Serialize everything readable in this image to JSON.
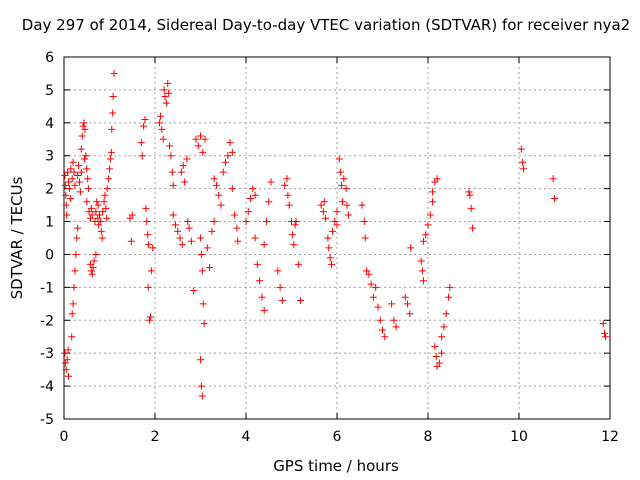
{
  "chart_data": {
    "type": "scatter",
    "title": "Day 297 of 2014, Sidereal Day-to-day VTEC variation (SDTVAR) for receiver nya2",
    "xlabel": "GPS time / hours",
    "ylabel": "SDTVAR / TECUs",
    "xlim": [
      0,
      12
    ],
    "ylim": [
      -5,
      6
    ],
    "xticks": [
      "0",
      "2",
      "4",
      "6",
      "8",
      "10",
      "12"
    ],
    "yticks": [
      "-5",
      "-4",
      "-3",
      "-2",
      "-1",
      "0",
      "1",
      "2",
      "3",
      "4",
      "5",
      "6"
    ],
    "grid": true,
    "marker": "+",
    "color": "#ff0000",
    "series": [
      {
        "name": "SDTVAR",
        "points": [
          [
            0.02,
            2.4
          ],
          [
            0.03,
            2.1
          ],
          [
            0.04,
            1.8
          ],
          [
            0.05,
            1.5
          ],
          [
            0.06,
            1.2
          ],
          [
            0.02,
            -3.0
          ],
          [
            0.03,
            -3.3
          ],
          [
            0.05,
            -3.5
          ],
          [
            0.07,
            -3.2
          ],
          [
            0.09,
            -2.9
          ],
          [
            0.1,
            -3.7
          ],
          [
            0.08,
            2.5
          ],
          [
            0.1,
            2.2
          ],
          [
            0.12,
            2.0
          ],
          [
            0.14,
            1.7
          ],
          [
            0.15,
            2.6
          ],
          [
            0.18,
            2.3
          ],
          [
            0.2,
            2.8
          ],
          [
            0.22,
            2.5
          ],
          [
            0.24,
            2.1
          ],
          [
            0.17,
            -2.5
          ],
          [
            0.18,
            -1.8
          ],
          [
            0.2,
            -1.5
          ],
          [
            0.22,
            -1.0
          ],
          [
            0.24,
            -0.5
          ],
          [
            0.26,
            0.0
          ],
          [
            0.28,
            0.5
          ],
          [
            0.3,
            0.8
          ],
          [
            0.3,
            2.4
          ],
          [
            0.32,
            2.7
          ],
          [
            0.34,
            2.2
          ],
          [
            0.36,
            1.9
          ],
          [
            0.38,
            2.5
          ],
          [
            0.38,
            3.2
          ],
          [
            0.4,
            3.6
          ],
          [
            0.42,
            3.9
          ],
          [
            0.44,
            4.0
          ],
          [
            0.46,
            3.8
          ],
          [
            0.45,
            2.9
          ],
          [
            0.48,
            3.0
          ],
          [
            0.5,
            2.6
          ],
          [
            0.52,
            2.3
          ],
          [
            0.54,
            2.0
          ],
          [
            0.5,
            1.6
          ],
          [
            0.55,
            1.3
          ],
          [
            0.58,
            1.1
          ],
          [
            0.6,
            1.4
          ],
          [
            0.62,
            1.2
          ],
          [
            0.58,
            -0.3
          ],
          [
            0.6,
            -0.5
          ],
          [
            0.62,
            -0.6
          ],
          [
            0.64,
            -0.4
          ],
          [
            0.66,
            -0.2
          ],
          [
            0.7,
            0.0
          ],
          [
            0.68,
            1.0
          ],
          [
            0.7,
            1.3
          ],
          [
            0.72,
            1.6
          ],
          [
            0.74,
            1.1
          ],
          [
            0.76,
            0.9
          ],
          [
            0.75,
            1.5
          ],
          [
            0.78,
            1.2
          ],
          [
            0.8,
            1.0
          ],
          [
            0.82,
            0.7
          ],
          [
            0.84,
            0.5
          ],
          [
            0.85,
            1.3
          ],
          [
            0.88,
            1.6
          ],
          [
            0.9,
            1.8
          ],
          [
            0.92,
            1.4
          ],
          [
            0.94,
            1.1
          ],
          [
            0.95,
            2.0
          ],
          [
            0.98,
            2.3
          ],
          [
            1.0,
            2.6
          ],
          [
            1.02,
            2.9
          ],
          [
            1.04,
            3.1
          ],
          [
            1.05,
            3.8
          ],
          [
            1.07,
            4.3
          ],
          [
            1.08,
            4.8
          ],
          [
            1.1,
            5.5
          ],
          [
            1.45,
            1.1
          ],
          [
            1.5,
            1.2
          ],
          [
            1.48,
            0.4
          ],
          [
            1.7,
            3.4
          ],
          [
            1.72,
            3.0
          ],
          [
            1.75,
            3.9
          ],
          [
            1.78,
            4.1
          ],
          [
            1.8,
            1.4
          ],
          [
            1.82,
            1.0
          ],
          [
            1.84,
            0.6
          ],
          [
            1.86,
            0.3
          ],
          [
            1.85,
            -1.0
          ],
          [
            1.88,
            -2.0
          ],
          [
            1.9,
            -1.9
          ],
          [
            1.92,
            -0.5
          ],
          [
            1.95,
            0.2
          ],
          [
            2.1,
            4.0
          ],
          [
            2.12,
            4.2
          ],
          [
            2.15,
            3.8
          ],
          [
            2.18,
            3.5
          ],
          [
            2.2,
            5.0
          ],
          [
            2.22,
            4.8
          ],
          [
            2.25,
            4.6
          ],
          [
            2.28,
            5.2
          ],
          [
            2.3,
            4.9
          ],
          [
            2.32,
            3.3
          ],
          [
            2.35,
            3.0
          ],
          [
            2.38,
            2.5
          ],
          [
            2.4,
            2.1
          ],
          [
            2.4,
            1.2
          ],
          [
            2.45,
            0.9
          ],
          [
            2.5,
            0.7
          ],
          [
            2.55,
            0.5
          ],
          [
            2.6,
            0.3
          ],
          [
            2.58,
            2.5
          ],
          [
            2.62,
            2.7
          ],
          [
            2.65,
            2.2
          ],
          [
            2.7,
            2.9
          ],
          [
            2.72,
            1.0
          ],
          [
            2.75,
            0.8
          ],
          [
            2.8,
            0.4
          ],
          [
            2.85,
            -1.1
          ],
          [
            2.9,
            3.5
          ],
          [
            2.95,
            3.3
          ],
          [
            3.0,
            3.6
          ],
          [
            3.05,
            3.1
          ],
          [
            3.1,
            3.5
          ],
          [
            3.0,
            0.5
          ],
          [
            3.02,
            0.0
          ],
          [
            3.04,
            -0.5
          ],
          [
            3.06,
            -1.5
          ],
          [
            3.08,
            -2.1
          ],
          [
            3.0,
            -3.2
          ],
          [
            3.02,
            -4.0
          ],
          [
            3.04,
            -4.3
          ],
          [
            3.15,
            0.2
          ],
          [
            3.2,
            -0.4
          ],
          [
            3.25,
            0.7
          ],
          [
            3.3,
            1.0
          ],
          [
            3.3,
            2.3
          ],
          [
            3.35,
            2.1
          ],
          [
            3.4,
            1.8
          ],
          [
            3.45,
            1.5
          ],
          [
            3.5,
            2.5
          ],
          [
            3.55,
            2.8
          ],
          [
            3.6,
            3.0
          ],
          [
            3.65,
            3.4
          ],
          [
            3.7,
            3.1
          ],
          [
            3.7,
            2.0
          ],
          [
            3.75,
            1.2
          ],
          [
            3.8,
            0.8
          ],
          [
            3.82,
            0.4
          ],
          [
            4.0,
            1.0
          ],
          [
            4.05,
            1.3
          ],
          [
            4.1,
            1.7
          ],
          [
            4.15,
            2.0
          ],
          [
            4.2,
            1.8
          ],
          [
            4.2,
            0.5
          ],
          [
            4.25,
            -0.3
          ],
          [
            4.3,
            -0.8
          ],
          [
            4.35,
            -1.3
          ],
          [
            4.4,
            -1.7
          ],
          [
            4.4,
            0.3
          ],
          [
            4.45,
            1.0
          ],
          [
            4.5,
            1.6
          ],
          [
            4.55,
            2.2
          ],
          [
            4.7,
            -0.5
          ],
          [
            4.75,
            -1.0
          ],
          [
            4.8,
            -1.4
          ],
          [
            4.85,
            2.1
          ],
          [
            4.9,
            2.3
          ],
          [
            4.92,
            1.8
          ],
          [
            4.95,
            1.5
          ],
          [
            5.0,
            1.0
          ],
          [
            5.02,
            0.6
          ],
          [
            5.05,
            0.3
          ],
          [
            5.08,
            0.9
          ],
          [
            5.1,
            1.0
          ],
          [
            5.15,
            -0.3
          ],
          [
            5.2,
            -1.4
          ],
          [
            5.65,
            1.5
          ],
          [
            5.7,
            1.3
          ],
          [
            5.72,
            1.6
          ],
          [
            5.75,
            1.1
          ],
          [
            5.8,
            0.5
          ],
          [
            5.82,
            0.2
          ],
          [
            5.85,
            -0.1
          ],
          [
            5.88,
            -0.3
          ],
          [
            5.9,
            0.7
          ],
          [
            5.95,
            1.0
          ],
          [
            6.0,
            1.3
          ],
          [
            6.0,
            0.9
          ],
          [
            6.05,
            2.9
          ],
          [
            6.08,
            2.5
          ],
          [
            6.1,
            2.1
          ],
          [
            6.12,
            1.6
          ],
          [
            6.15,
            2.3
          ],
          [
            6.2,
            2.0
          ],
          [
            6.22,
            1.5
          ],
          [
            6.25,
            1.2
          ],
          [
            6.55,
            1.5
          ],
          [
            6.6,
            1.0
          ],
          [
            6.62,
            0.5
          ],
          [
            6.65,
            -0.5
          ],
          [
            6.7,
            -0.6
          ],
          [
            6.75,
            -0.9
          ],
          [
            6.8,
            -1.3
          ],
          [
            6.85,
            -1.0
          ],
          [
            6.9,
            -1.6
          ],
          [
            6.95,
            -2.0
          ],
          [
            7.0,
            -2.3
          ],
          [
            7.05,
            -2.5
          ],
          [
            7.2,
            -1.5
          ],
          [
            7.25,
            -2.0
          ],
          [
            7.3,
            -2.2
          ],
          [
            7.5,
            -1.3
          ],
          [
            7.55,
            -1.5
          ],
          [
            7.6,
            -1.8
          ],
          [
            7.62,
            0.2
          ],
          [
            7.85,
            -0.2
          ],
          [
            7.88,
            -0.5
          ],
          [
            7.9,
            -0.8
          ],
          [
            7.9,
            0.4
          ],
          [
            7.95,
            0.6
          ],
          [
            8.0,
            0.9
          ],
          [
            8.05,
            1.2
          ],
          [
            8.1,
            1.6
          ],
          [
            8.1,
            1.9
          ],
          [
            8.15,
            2.2
          ],
          [
            8.2,
            2.3
          ],
          [
            8.15,
            -2.8
          ],
          [
            8.18,
            -3.1
          ],
          [
            8.2,
            -3.4
          ],
          [
            8.25,
            -3.3
          ],
          [
            8.3,
            -3.0
          ],
          [
            8.3,
            -2.5
          ],
          [
            8.35,
            -2.2
          ],
          [
            8.4,
            -1.8
          ],
          [
            8.45,
            -1.3
          ],
          [
            8.48,
            -1.0
          ],
          [
            8.9,
            1.9
          ],
          [
            8.92,
            1.8
          ],
          [
            8.95,
            1.4
          ],
          [
            8.98,
            0.8
          ],
          [
            10.05,
            3.2
          ],
          [
            10.08,
            2.8
          ],
          [
            10.1,
            2.6
          ],
          [
            10.75,
            2.3
          ],
          [
            10.78,
            1.7
          ],
          [
            11.85,
            -2.1
          ],
          [
            11.88,
            -2.4
          ],
          [
            11.9,
            -2.5
          ]
        ]
      }
    ]
  }
}
